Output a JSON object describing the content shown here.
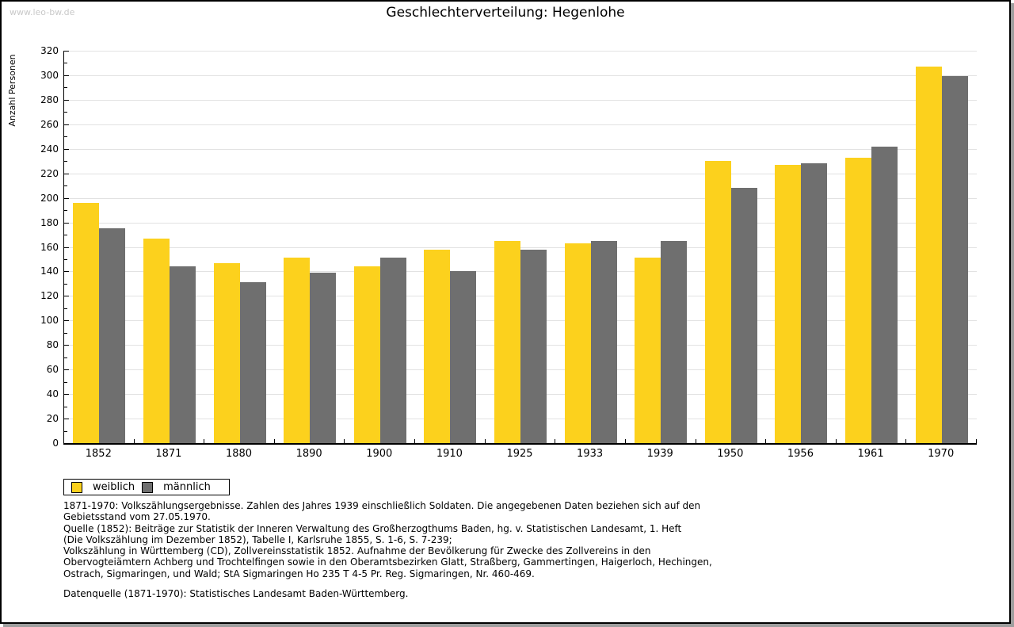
{
  "page": {
    "watermark": "www.leo-bw.de"
  },
  "chart_data": {
    "type": "bar",
    "title": "Geschlechterverteilung: Hegenlohe",
    "ylabel": "Anzahl Personen",
    "xlabel": "",
    "categories": [
      "1852",
      "1871",
      "1880",
      "1890",
      "1900",
      "1910",
      "1925",
      "1933",
      "1939",
      "1950",
      "1956",
      "1961",
      "1970"
    ],
    "series": [
      {
        "name": "weiblich",
        "color": "#fcd11d",
        "values": [
          196,
          167,
          147,
          151,
          144,
          158,
          165,
          163,
          151,
          230,
          227,
          233,
          307
        ]
      },
      {
        "name": "männlich",
        "color": "#6f6f6f",
        "values": [
          175,
          144,
          131,
          139,
          151,
          140,
          158,
          165,
          165,
          208,
          228,
          242,
          299
        ]
      }
    ],
    "ylim": [
      0,
      320
    ],
    "ytick_step": 20,
    "minor_ytick_step": 10,
    "grid": "horizontal-major",
    "legend_position": "bottom-left"
  },
  "legend": {
    "items": [
      {
        "label": "weiblich",
        "color": "#fcd11d"
      },
      {
        "label": "männlich",
        "color": "#6f6f6f"
      }
    ]
  },
  "footer": {
    "lines": [
      "1871-1970: Volkszählungsergebnisse. Zahlen des Jahres 1939 einschließlich Soldaten. Die angegebenen Daten beziehen sich auf den",
      "Gebietsstand vom 27.05.1970.",
      "Quelle (1852): Beiträge zur Statistik der Inneren Verwaltung des Großherzogthums Baden, hg. v. Statistischen Landesamt, 1. Heft",
      "(Die Volkszählung im Dezember 1852), Tabelle I, Karlsruhe 1855, S. 1-6, S. 7-239;",
      "Volkszählung in Württemberg (CD), Zollvereinsstatistik 1852. Aufnahme der Bevölkerung für Zwecke des Zollvereins in den",
      "Obervogteiämtern Achberg und Trochtelfingen sowie in den Oberamtsbezirken Glatt, Straßberg, Gammertingen, Haigerloch, Hechingen,",
      "Ostrach, Sigmaringen, und Wald; StA Sigmaringen Ho 235 T 4-5 Pr. Reg. Sigmaringen, Nr. 460-469."
    ],
    "source_line": "Datenquelle (1871-1970): Statistisches Landesamt Baden-Württemberg."
  },
  "colors": {
    "weiblich": "#fcd11d",
    "maennlich": "#6f6f6f",
    "gridline": "#e2e2e2",
    "axis": "#000000",
    "watermark": "#c9c9c9",
    "shadow": "#9e9e9e",
    "background": "#ffffff"
  }
}
